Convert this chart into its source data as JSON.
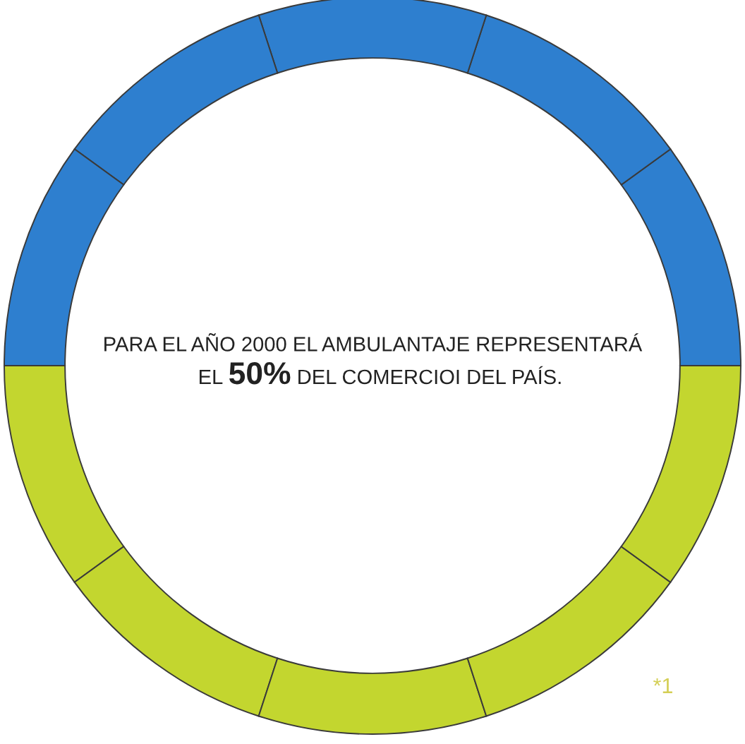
{
  "chart_data": {
    "type": "donut",
    "categories": [
      null,
      null,
      null,
      null,
      null,
      null,
      null,
      null,
      null,
      null
    ],
    "values": [
      10,
      10,
      10,
      10,
      10,
      10,
      10,
      10,
      10,
      10
    ],
    "colors": [
      "#2e7fcf",
      "#2e7fcf",
      "#2e7fcf",
      "#2e7fcf",
      "#2e7fcf",
      "#c3d62f",
      "#c3d62f",
      "#c3d62f",
      "#c3d62f",
      "#c3d62f"
    ],
    "annotations": [
      "PARA EL AÑO 2000 EL AMBULANTAJE REPRESENTARÁ",
      "EL",
      "50%",
      "DEL COMERCIOI DEL PAÍS.",
      "*1"
    ],
    "legend": false
  }
}
